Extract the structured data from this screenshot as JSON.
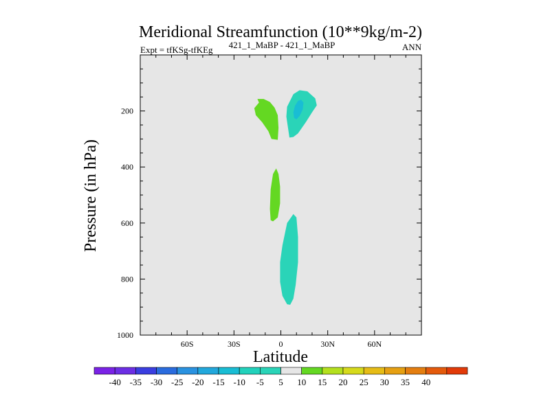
{
  "chart_data": {
    "type": "contour",
    "title": "Meridional Streamfunction (10**9kg/m-2)",
    "expt_label": "Expt = tfKSg-tfKEg",
    "run_label": "421_1_MaBP - 421_1_MaBP",
    "season": "ANN",
    "xlabel": "Latitude",
    "ylabel": "Pressure (in hPa)",
    "xlim": [
      -90,
      90
    ],
    "ylim": [
      1000,
      0
    ],
    "x_ticks": [
      {
        "value": -60,
        "label": "60S"
      },
      {
        "value": -30,
        "label": "30S"
      },
      {
        "value": 0,
        "label": "0"
      },
      {
        "value": 30,
        "label": "30N"
      },
      {
        "value": 60,
        "label": "60N"
      }
    ],
    "y_ticks": [
      {
        "value": 200,
        "label": "200"
      },
      {
        "value": 400,
        "label": "400"
      },
      {
        "value": 600,
        "label": "600"
      },
      {
        "value": 800,
        "label": "800"
      },
      {
        "value": 1000,
        "label": "1000"
      }
    ],
    "background_value_range": [
      -5,
      5
    ],
    "background_color": "#e6e6e6",
    "regions": [
      {
        "name": "upper-negative-cell",
        "range": [
          -10,
          -5
        ],
        "color": "#2ad4b8",
        "points": [
          [
            5.5,
            295
          ],
          [
            3.5,
            220
          ],
          [
            4,
            185
          ],
          [
            8,
            140
          ],
          [
            12,
            126
          ],
          [
            17,
            130
          ],
          [
            22,
            155
          ],
          [
            23,
            180
          ],
          [
            20,
            205
          ],
          [
            16,
            240
          ],
          [
            11,
            280
          ],
          [
            8,
            293
          ]
        ]
      },
      {
        "name": "upper-negative-core",
        "range": [
          -15,
          -10
        ],
        "color": "#19bdd4",
        "points": [
          [
            8.5,
            225
          ],
          [
            8,
            205
          ],
          [
            9,
            182
          ],
          [
            11,
            164
          ],
          [
            13,
            160
          ],
          [
            14.5,
            170
          ],
          [
            14,
            195
          ],
          [
            12,
            218
          ],
          [
            10,
            230
          ]
        ]
      },
      {
        "name": "upper-positive-cell",
        "range": [
          5,
          10
        ],
        "color": "#64d822",
        "points": [
          [
            -14,
            170
          ],
          [
            -17,
            190
          ],
          [
            -16,
            215
          ],
          [
            -12,
            240
          ],
          [
            -8,
            272
          ],
          [
            -6,
            300
          ],
          [
            -2,
            303
          ],
          [
            -1.5,
            260
          ],
          [
            -2,
            215
          ],
          [
            -4,
            188
          ],
          [
            -7,
            168
          ],
          [
            -11,
            157
          ],
          [
            -15,
            157
          ]
        ]
      },
      {
        "name": "mid-positive-cell",
        "range": [
          5,
          10
        ],
        "color": "#64d822",
        "points": [
          [
            -6.5,
            590
          ],
          [
            -7,
            550
          ],
          [
            -6.5,
            480
          ],
          [
            -5,
            425
          ],
          [
            -3,
            405
          ],
          [
            -1.5,
            425
          ],
          [
            -0.5,
            470
          ],
          [
            -0.5,
            530
          ],
          [
            -2,
            580
          ],
          [
            -5,
            594
          ]
        ]
      },
      {
        "name": "lower-negative-cell",
        "range": [
          -10,
          -5
        ],
        "color": "#2ad4b8",
        "points": [
          [
            4,
            890
          ],
          [
            1,
            860
          ],
          [
            -0.5,
            810
          ],
          [
            -0.5,
            740
          ],
          [
            1,
            680
          ],
          [
            4,
            600
          ],
          [
            8,
            568
          ],
          [
            10,
            580
          ],
          [
            11,
            650
          ],
          [
            11,
            740
          ],
          [
            9.5,
            820
          ],
          [
            8,
            870
          ],
          [
            6,
            892
          ]
        ]
      }
    ],
    "colorbar": {
      "labels": [
        "-40",
        "-35",
        "-30",
        "-25",
        "-20",
        "-15",
        "-10",
        "-5",
        "5",
        "10",
        "15",
        "20",
        "25",
        "30",
        "35",
        "40"
      ],
      "colors": [
        "#7a22e6",
        "#6c2ee4",
        "#3a3ee0",
        "#2a6cde",
        "#2a92e0",
        "#22a8dc",
        "#19bdd4",
        "#22d2bc",
        "#2ad4b8",
        "#e6e6e6",
        "#64d822",
        "#b4e01e",
        "#d6da1c",
        "#e6bc16",
        "#e6a012",
        "#e47e10",
        "#e45a0c",
        "#e23a08"
      ]
    }
  }
}
